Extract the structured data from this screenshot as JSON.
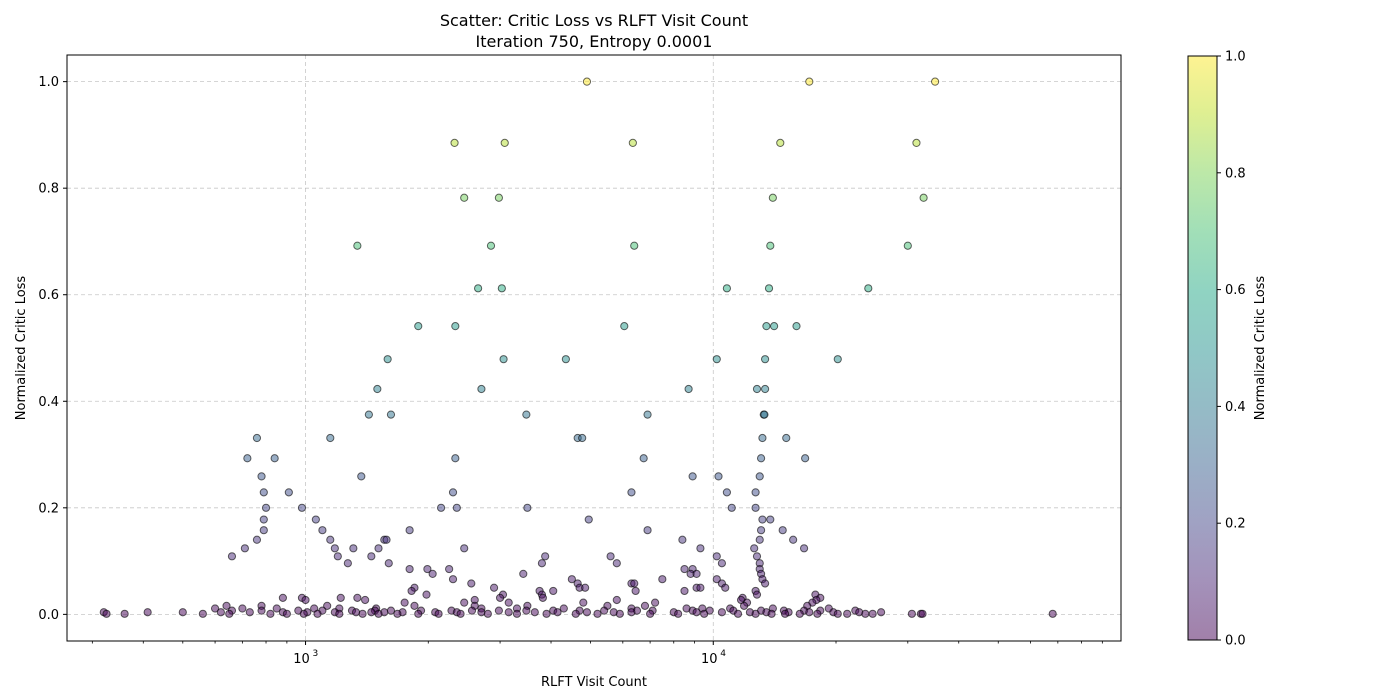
{
  "chart_data": {
    "type": "scatter",
    "title": "Scatter: Critic Loss vs RLFT Visit Count",
    "subtitle": "Iteration 750, Entropy 0.0001",
    "xlabel": "RLFT Visit Count",
    "ylabel": "Normalized Critic Loss",
    "xscale": "log",
    "xlim": [
      260,
      100000
    ],
    "ylim": [
      -0.05,
      1.05
    ],
    "grid": true,
    "x_ticks": [
      {
        "value": 1000,
        "base": "10",
        "exp": "3"
      },
      {
        "value": 10000,
        "base": "10",
        "exp": "4"
      }
    ],
    "y_ticks": [
      {
        "value": 0.0,
        "label": "0.0"
      },
      {
        "value": 0.2,
        "label": "0.2"
      },
      {
        "value": 0.4,
        "label": "0.4"
      },
      {
        "value": 0.6,
        "label": "0.6"
      },
      {
        "value": 0.8,
        "label": "0.8"
      },
      {
        "value": 1.0,
        "label": "1.0"
      }
    ],
    "colorbar": {
      "label": "Normalized Critic Loss",
      "colormap": "viridis",
      "range": [
        0,
        1
      ],
      "ticks": [
        {
          "value": 0.0,
          "label": "0.0"
        },
        {
          "value": 0.2,
          "label": "0.2"
        },
        {
          "value": 0.4,
          "label": "0.4"
        },
        {
          "value": 0.6,
          "label": "0.6"
        },
        {
          "value": 0.8,
          "label": "0.8"
        },
        {
          "value": 1.0,
          "label": "1.0"
        }
      ]
    },
    "marker_alpha": 0.5,
    "points": [
      [
        4900,
        1.0
      ],
      [
        17200,
        1.0
      ],
      [
        35000,
        1.0
      ],
      [
        2320,
        0.885
      ],
      [
        3080,
        0.885
      ],
      [
        6350,
        0.885
      ],
      [
        14600,
        0.885
      ],
      [
        31500,
        0.885
      ],
      [
        2450,
        0.782
      ],
      [
        2980,
        0.782
      ],
      [
        14000,
        0.782
      ],
      [
        32800,
        0.782
      ],
      [
        1340,
        0.692
      ],
      [
        2850,
        0.692
      ],
      [
        6400,
        0.692
      ],
      [
        13800,
        0.692
      ],
      [
        30000,
        0.692
      ],
      [
        2650,
        0.612
      ],
      [
        3030,
        0.612
      ],
      [
        10800,
        0.612
      ],
      [
        13700,
        0.612
      ],
      [
        24000,
        0.612
      ],
      [
        1890,
        0.541
      ],
      [
        2330,
        0.541
      ],
      [
        6050,
        0.541
      ],
      [
        13500,
        0.541
      ],
      [
        14100,
        0.541
      ],
      [
        16000,
        0.541
      ],
      [
        1590,
        0.479
      ],
      [
        3060,
        0.479
      ],
      [
        4350,
        0.479
      ],
      [
        10200,
        0.479
      ],
      [
        13400,
        0.479
      ],
      [
        20200,
        0.479
      ],
      [
        1500,
        0.423
      ],
      [
        2700,
        0.423
      ],
      [
        8700,
        0.423
      ],
      [
        12800,
        0.423
      ],
      [
        13400,
        0.423
      ],
      [
        1430,
        0.375
      ],
      [
        1620,
        0.375
      ],
      [
        3480,
        0.375
      ],
      [
        6900,
        0.375
      ],
      [
        13300,
        0.375
      ],
      [
        13350,
        0.375
      ],
      [
        760,
        0.331
      ],
      [
        1150,
        0.331
      ],
      [
        4650,
        0.331
      ],
      [
        4770,
        0.331
      ],
      [
        13200,
        0.331
      ],
      [
        15100,
        0.331
      ],
      [
        720,
        0.293
      ],
      [
        840,
        0.293
      ],
      [
        2330,
        0.293
      ],
      [
        6750,
        0.293
      ],
      [
        13100,
        0.293
      ],
      [
        16800,
        0.293
      ],
      [
        780,
        0.259
      ],
      [
        1370,
        0.259
      ],
      [
        8900,
        0.259
      ],
      [
        10300,
        0.259
      ],
      [
        13000,
        0.259
      ],
      [
        790,
        0.229
      ],
      [
        910,
        0.229
      ],
      [
        2300,
        0.229
      ],
      [
        6300,
        0.229
      ],
      [
        10800,
        0.229
      ],
      [
        12700,
        0.229
      ],
      [
        800,
        0.2
      ],
      [
        980,
        0.2
      ],
      [
        2150,
        0.2
      ],
      [
        2350,
        0.2
      ],
      [
        3500,
        0.2
      ],
      [
        11100,
        0.2
      ],
      [
        12700,
        0.2
      ],
      [
        790,
        0.178
      ],
      [
        1060,
        0.178
      ],
      [
        4950,
        0.178
      ],
      [
        13200,
        0.178
      ],
      [
        13800,
        0.178
      ],
      [
        790,
        0.158
      ],
      [
        1100,
        0.158
      ],
      [
        1800,
        0.158
      ],
      [
        6900,
        0.158
      ],
      [
        13100,
        0.158
      ],
      [
        14800,
        0.158
      ],
      [
        760,
        0.14
      ],
      [
        1150,
        0.14
      ],
      [
        1560,
        0.14
      ],
      [
        1580,
        0.14
      ],
      [
        8400,
        0.14
      ],
      [
        13000,
        0.14
      ],
      [
        15700,
        0.14
      ],
      [
        710,
        0.124
      ],
      [
        1180,
        0.124
      ],
      [
        1310,
        0.124
      ],
      [
        1510,
        0.124
      ],
      [
        2450,
        0.124
      ],
      [
        9300,
        0.124
      ],
      [
        12600,
        0.124
      ],
      [
        16700,
        0.124
      ],
      [
        660,
        0.109
      ],
      [
        1200,
        0.109
      ],
      [
        1450,
        0.109
      ],
      [
        3870,
        0.109
      ],
      [
        5600,
        0.109
      ],
      [
        10200,
        0.109
      ],
      [
        12800,
        0.109
      ],
      [
        1270,
        0.096
      ],
      [
        1600,
        0.096
      ],
      [
        3800,
        0.096
      ],
      [
        5800,
        0.096
      ],
      [
        10500,
        0.096
      ],
      [
        13000,
        0.096
      ],
      [
        1800,
        0.085
      ],
      [
        1990,
        0.085
      ],
      [
        2250,
        0.085
      ],
      [
        8500,
        0.085
      ],
      [
        8900,
        0.085
      ],
      [
        13000,
        0.085
      ],
      [
        2050,
        0.076
      ],
      [
        3420,
        0.076
      ],
      [
        8800,
        0.076
      ],
      [
        9100,
        0.076
      ],
      [
        13100,
        0.076
      ],
      [
        2300,
        0.066
      ],
      [
        4500,
        0.066
      ],
      [
        7500,
        0.066
      ],
      [
        10200,
        0.066
      ],
      [
        13200,
        0.066
      ],
      [
        2550,
        0.058
      ],
      [
        4650,
        0.058
      ],
      [
        6300,
        0.058
      ],
      [
        6400,
        0.058
      ],
      [
        10500,
        0.058
      ],
      [
        13400,
        0.058
      ],
      [
        1850,
        0.05
      ],
      [
        2900,
        0.05
      ],
      [
        4700,
        0.05
      ],
      [
        4850,
        0.05
      ],
      [
        9100,
        0.05
      ],
      [
        9300,
        0.05
      ],
      [
        10700,
        0.05
      ],
      [
        1820,
        0.044
      ],
      [
        3750,
        0.044
      ],
      [
        4050,
        0.044
      ],
      [
        6450,
        0.044
      ],
      [
        8500,
        0.044
      ],
      [
        12700,
        0.044
      ],
      [
        1980,
        0.037
      ],
      [
        3050,
        0.037
      ],
      [
        3800,
        0.037
      ],
      [
        12800,
        0.037
      ],
      [
        17800,
        0.037
      ],
      [
        880,
        0.031
      ],
      [
        980,
        0.031
      ],
      [
        1220,
        0.031
      ],
      [
        1340,
        0.031
      ],
      [
        3000,
        0.031
      ],
      [
        3820,
        0.031
      ],
      [
        11800,
        0.031
      ],
      [
        18300,
        0.031
      ],
      [
        1000,
        0.027
      ],
      [
        1400,
        0.027
      ],
      [
        2600,
        0.027
      ],
      [
        5800,
        0.027
      ],
      [
        11700,
        0.027
      ],
      [
        17900,
        0.027
      ],
      [
        1750,
        0.022
      ],
      [
        2450,
        0.022
      ],
      [
        3150,
        0.022
      ],
      [
        4800,
        0.022
      ],
      [
        7200,
        0.022
      ],
      [
        12100,
        0.022
      ],
      [
        17500,
        0.022
      ],
      [
        640,
        0.016
      ],
      [
        780,
        0.016
      ],
      [
        1130,
        0.016
      ],
      [
        1850,
        0.016
      ],
      [
        2600,
        0.016
      ],
      [
        3500,
        0.016
      ],
      [
        5500,
        0.016
      ],
      [
        6800,
        0.016
      ],
      [
        11900,
        0.016
      ],
      [
        17000,
        0.016
      ],
      [
        600,
        0.011
      ],
      [
        700,
        0.011
      ],
      [
        850,
        0.011
      ],
      [
        1050,
        0.011
      ],
      [
        1210,
        0.011
      ],
      [
        1490,
        0.011
      ],
      [
        2700,
        0.011
      ],
      [
        3300,
        0.011
      ],
      [
        4300,
        0.011
      ],
      [
        6300,
        0.011
      ],
      [
        8600,
        0.011
      ],
      [
        9400,
        0.011
      ],
      [
        11000,
        0.011
      ],
      [
        14000,
        0.011
      ],
      [
        19200,
        0.011
      ],
      [
        660,
        0.007
      ],
      [
        780,
        0.007
      ],
      [
        960,
        0.007
      ],
      [
        1100,
        0.007
      ],
      [
        1300,
        0.007
      ],
      [
        1480,
        0.007
      ],
      [
        1620,
        0.007
      ],
      [
        1920,
        0.007
      ],
      [
        2280,
        0.007
      ],
      [
        2560,
        0.007
      ],
      [
        2980,
        0.007
      ],
      [
        3480,
        0.007
      ],
      [
        4050,
        0.007
      ],
      [
        4700,
        0.007
      ],
      [
        5400,
        0.007
      ],
      [
        6500,
        0.007
      ],
      [
        7100,
        0.007
      ],
      [
        8900,
        0.007
      ],
      [
        9800,
        0.007
      ],
      [
        11200,
        0.007
      ],
      [
        13100,
        0.007
      ],
      [
        14900,
        0.007
      ],
      [
        16700,
        0.007
      ],
      [
        18300,
        0.007
      ],
      [
        22300,
        0.007
      ],
      [
        320,
        0.004
      ],
      [
        410,
        0.004
      ],
      [
        500,
        0.004
      ],
      [
        620,
        0.004
      ],
      [
        730,
        0.004
      ],
      [
        880,
        0.004
      ],
      [
        1010,
        0.004
      ],
      [
        1180,
        0.004
      ],
      [
        1330,
        0.004
      ],
      [
        1450,
        0.004
      ],
      [
        1560,
        0.004
      ],
      [
        1730,
        0.004
      ],
      [
        2080,
        0.004
      ],
      [
        2350,
        0.004
      ],
      [
        2700,
        0.004
      ],
      [
        3150,
        0.004
      ],
      [
        3650,
        0.004
      ],
      [
        4150,
        0.004
      ],
      [
        4900,
        0.004
      ],
      [
        5700,
        0.004
      ],
      [
        6300,
        0.004
      ],
      [
        8000,
        0.004
      ],
      [
        9100,
        0.004
      ],
      [
        10500,
        0.004
      ],
      [
        12300,
        0.004
      ],
      [
        13500,
        0.004
      ],
      [
        15300,
        0.004
      ],
      [
        17200,
        0.004
      ],
      [
        19700,
        0.004
      ],
      [
        22800,
        0.004
      ],
      [
        25800,
        0.004
      ],
      [
        325,
        0.001
      ],
      [
        360,
        0.001
      ],
      [
        560,
        0.001
      ],
      [
        650,
        0.001
      ],
      [
        820,
        0.001
      ],
      [
        900,
        0.001
      ],
      [
        990,
        0.001
      ],
      [
        1070,
        0.001
      ],
      [
        1210,
        0.001
      ],
      [
        1380,
        0.001
      ],
      [
        1510,
        0.001
      ],
      [
        1680,
        0.001
      ],
      [
        1890,
        0.001
      ],
      [
        2120,
        0.001
      ],
      [
        2400,
        0.001
      ],
      [
        2800,
        0.001
      ],
      [
        3300,
        0.001
      ],
      [
        3900,
        0.001
      ],
      [
        4600,
        0.001
      ],
      [
        5200,
        0.001
      ],
      [
        5900,
        0.001
      ],
      [
        7000,
        0.001
      ],
      [
        8200,
        0.001
      ],
      [
        9500,
        0.001
      ],
      [
        11500,
        0.001
      ],
      [
        12700,
        0.001
      ],
      [
        13900,
        0.001
      ],
      [
        15000,
        0.001
      ],
      [
        16300,
        0.001
      ],
      [
        18000,
        0.001
      ],
      [
        20200,
        0.001
      ],
      [
        21300,
        0.001
      ],
      [
        23600,
        0.001
      ],
      [
        24600,
        0.001
      ],
      [
        30700,
        0.001
      ],
      [
        32300,
        0.001
      ],
      [
        32600,
        0.001
      ],
      [
        68000,
        0.001
      ]
    ]
  }
}
